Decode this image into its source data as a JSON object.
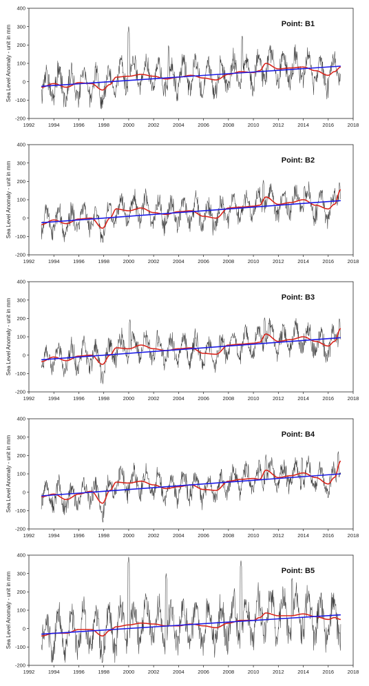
{
  "chart_data": [
    {
      "type": "line",
      "title": "Point: B1",
      "ylabel": "Sea Level Anomaly - unit in mm",
      "xlim": [
        1992,
        2018
      ],
      "ylim": [
        -200,
        400
      ],
      "xticks": [
        "1992",
        "1994",
        "1996",
        "1998",
        "2000",
        "2002",
        "2004",
        "2006",
        "2008",
        "2010",
        "2012",
        "2014",
        "2016",
        "2018"
      ],
      "yticks": [
        "400",
        "300",
        "200",
        "100",
        "0",
        "-100",
        "-200"
      ],
      "amplitude": 85,
      "spikes": [
        [
          2000.0,
          300
        ],
        [
          2009.1,
          255
        ],
        [
          2003.2,
          200
        ]
      ],
      "smooth": {
        "x": [
          1993,
          1994,
          1995,
          1996,
          1997,
          1997.9,
          1998.5,
          1999,
          2000,
          2001,
          2002,
          2003,
          2004,
          2005,
          2006,
          2007,
          2008,
          2009,
          2010,
          2010.5,
          2011,
          2012,
          2013,
          2014,
          2015,
          2016,
          2016.5,
          2017
        ],
        "y": [
          -30,
          -10,
          -30,
          -5,
          -10,
          -45,
          -15,
          25,
          30,
          40,
          30,
          15,
          25,
          35,
          20,
          10,
          40,
          55,
          50,
          60,
          100,
          70,
          75,
          80,
          60,
          35,
          55,
          80
        ]
      },
      "trend": {
        "x": [
          1993,
          2017
        ],
        "y": [
          -25,
          85
        ]
      }
    },
    {
      "type": "line",
      "title": "Point: B2",
      "ylabel": "Sea Level Anomaly - unit in mm",
      "xlim": [
        1992,
        2018
      ],
      "ylim": [
        -200,
        400
      ],
      "xticks": [
        "1992",
        "1994",
        "1996",
        "1998",
        "2000",
        "2002",
        "2004",
        "2006",
        "2008",
        "2010",
        "2012",
        "2014",
        "2016",
        "2018"
      ],
      "yticks": [
        "400",
        "300",
        "200",
        "100",
        "0",
        "-100",
        "-200"
      ],
      "amplitude": 75,
      "spikes": [
        [
          2010.8,
          210
        ],
        [
          2016.9,
          200
        ],
        [
          2014.1,
          180
        ]
      ],
      "smooth": {
        "x": [
          1993,
          1994,
          1995,
          1996,
          1997,
          1997.9,
          1998.5,
          1999,
          2000,
          2001,
          2002,
          2003,
          2004,
          2005,
          2006,
          2007,
          2008,
          2009,
          2010,
          2010.5,
          2011,
          2012,
          2013,
          2014,
          2015,
          2016,
          2016.5,
          2017
        ],
        "y": [
          -35,
          -10,
          -30,
          -5,
          0,
          -55,
          0,
          50,
          40,
          55,
          30,
          20,
          35,
          40,
          10,
          0,
          55,
          60,
          65,
          70,
          115,
          75,
          85,
          100,
          70,
          50,
          75,
          155
        ]
      },
      "trend": {
        "x": [
          1993,
          2017
        ],
        "y": [
          -25,
          95
        ]
      }
    },
    {
      "type": "line",
      "title": "Point: B3",
      "ylabel": "Sea Level Anomaly - unit in mm",
      "xlim": [
        1992,
        2018
      ],
      "ylim": [
        -200,
        400
      ],
      "xticks": [
        "1992",
        "1994",
        "1996",
        "1998",
        "2000",
        "2002",
        "2004",
        "2006",
        "2008",
        "2010",
        "2012",
        "2014",
        "2016",
        "2018"
      ],
      "yticks": [
        "400",
        "300",
        "200",
        "100",
        "0",
        "-100",
        "-200"
      ],
      "amplitude": 75,
      "spikes": [
        [
          2000.1,
          200
        ],
        [
          2010.9,
          210
        ],
        [
          2016.9,
          205
        ]
      ],
      "smooth": {
        "x": [
          1993,
          1994,
          1995,
          1996,
          1997,
          1997.9,
          1998.5,
          1999,
          2000,
          2001,
          2002,
          2003,
          2004,
          2005,
          2006,
          2007,
          2008,
          2009,
          2010,
          2010.5,
          2011,
          2012,
          2013,
          2014,
          2015,
          2016,
          2016.5,
          2017
        ],
        "y": [
          -35,
          -10,
          -30,
          -5,
          0,
          -50,
          0,
          40,
          35,
          55,
          35,
          25,
          35,
          40,
          10,
          5,
          55,
          60,
          65,
          70,
          115,
          75,
          85,
          100,
          75,
          50,
          75,
          145
        ]
      },
      "trend": {
        "x": [
          1993,
          2017
        ],
        "y": [
          -25,
          95
        ]
      }
    },
    {
      "type": "line",
      "title": "Point: B4",
      "ylabel": "Sea Level Anomaly - unit in mm",
      "xlim": [
        1992,
        2018
      ],
      "ylim": [
        -200,
        400
      ],
      "xticks": [
        "1992",
        "1994",
        "1996",
        "1998",
        "2000",
        "2002",
        "2004",
        "2006",
        "2008",
        "2010",
        "2012",
        "2014",
        "2016",
        "2018"
      ],
      "yticks": [
        "400",
        "300",
        "200",
        "100",
        "0",
        "-100",
        "-200"
      ],
      "amplitude": 72,
      "spikes": [
        [
          2016.8,
          225
        ],
        [
          2011.0,
          205
        ],
        [
          2013.9,
          195
        ]
      ],
      "smooth": {
        "x": [
          1993,
          1994,
          1995,
          1996,
          1997,
          1997.9,
          1998.5,
          1999,
          2000,
          2001,
          2002,
          2003,
          2004,
          2005,
          2006,
          2007,
          2008,
          2009,
          2010,
          2010.5,
          2011,
          2012,
          2013,
          2014,
          2015,
          2016,
          2016.5,
          2017
        ],
        "y": [
          -25,
          -10,
          -40,
          -10,
          5,
          -60,
          10,
          55,
          50,
          60,
          40,
          20,
          30,
          40,
          15,
          10,
          60,
          70,
          75,
          70,
          120,
          80,
          90,
          105,
          80,
          45,
          80,
          170
        ]
      },
      "trend": {
        "x": [
          1993,
          2017
        ],
        "y": [
          -20,
          100
        ]
      }
    },
    {
      "type": "line",
      "title": "Point: B5",
      "ylabel": "Sea Level Anomaly - unit in mm",
      "xlim": [
        1992,
        2018
      ],
      "ylim": [
        -200,
        400
      ],
      "xticks": [
        "1992",
        "1994",
        "1996",
        "1998",
        "2000",
        "2002",
        "2004",
        "2006",
        "2008",
        "2010",
        "2012",
        "2014",
        "2016",
        "2018"
      ],
      "yticks": [
        "400",
        "300",
        "200",
        "100",
        "0",
        "-100",
        "-200"
      ],
      "amplitude": 120,
      "spikes": [
        [
          2000.0,
          390
        ],
        [
          2009.0,
          370
        ],
        [
          2003.0,
          300
        ],
        [
          2013.1,
          280
        ]
      ],
      "smooth": {
        "x": [
          1993,
          1994,
          1995,
          1996,
          1997,
          1997.9,
          1998.5,
          1999,
          2000,
          2001,
          2002,
          2003,
          2004,
          2005,
          2006,
          2007,
          2008,
          2009,
          2010,
          2010.5,
          2011,
          2012,
          2013,
          2014,
          2015,
          2016,
          2016.5,
          2017
        ],
        "y": [
          -40,
          -25,
          -25,
          -5,
          -5,
          -40,
          -10,
          10,
          20,
          30,
          25,
          15,
          15,
          25,
          15,
          5,
          30,
          45,
          45,
          60,
          85,
          70,
          70,
          80,
          65,
          50,
          60,
          50
        ]
      },
      "trend": {
        "x": [
          1993,
          2017
        ],
        "y": [
          -30,
          75
        ]
      }
    }
  ],
  "colors": {
    "raw": "#3a3a3a",
    "smooth": "#d8241c",
    "trend": "#1a1ae6",
    "axis": "#222222"
  }
}
